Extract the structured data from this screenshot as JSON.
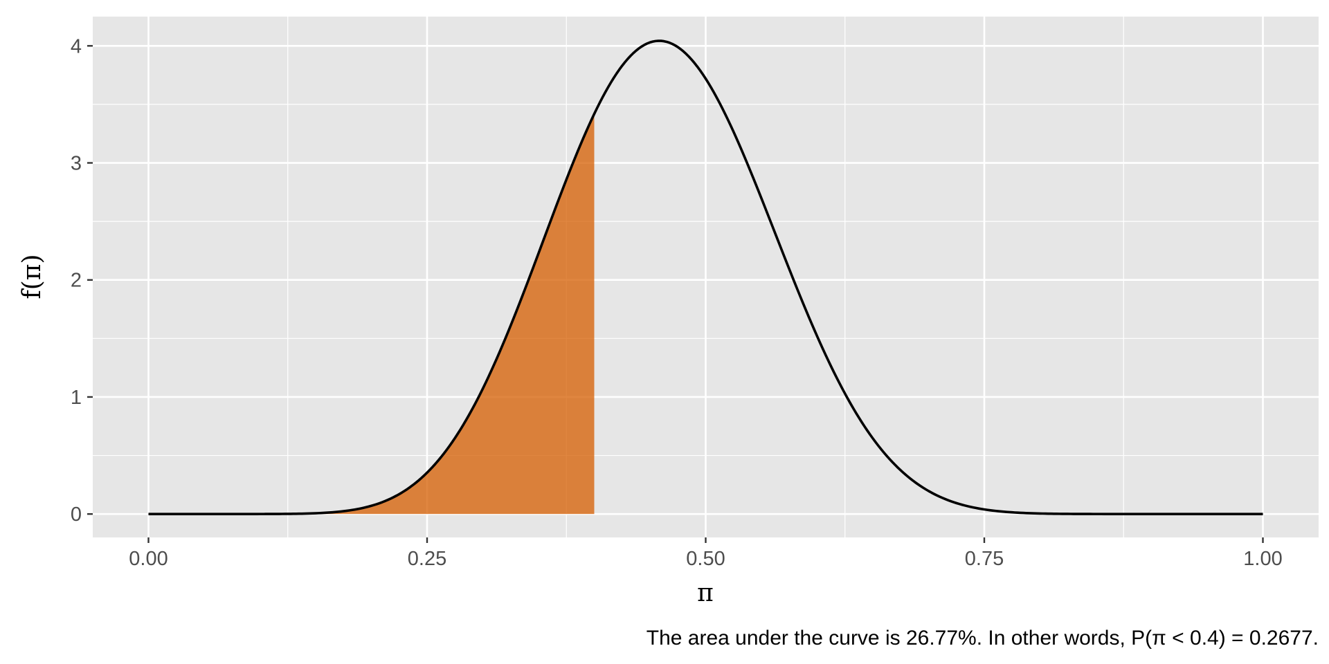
{
  "chart_data": {
    "type": "area",
    "xlabel": "π",
    "ylabel": "f(π)",
    "caption": "The area under the curve is 26.77%. In other words, P(π < 0.4) = 0.2677.",
    "xlim": [
      -0.05,
      1.05
    ],
    "ylim": [
      -0.2,
      4.25
    ],
    "x_ticks": [
      0,
      0.25,
      0.5,
      0.75,
      1
    ],
    "x_tick_labels": [
      "0.00",
      "0.25",
      "0.50",
      "0.75",
      "1.00"
    ],
    "y_ticks": [
      0,
      1,
      2,
      3,
      4
    ],
    "y_tick_labels": [
      "0",
      "1",
      "2",
      "3",
      "4"
    ],
    "grid": true,
    "background": "#e6e6e6",
    "curve": {
      "distribution": "Beta",
      "alpha": 12,
      "beta": 14,
      "color": "#000000"
    },
    "shaded_region": {
      "x_from": 0,
      "x_to": 0.4,
      "fill": "#d55e00",
      "opacity": 0.75
    }
  }
}
